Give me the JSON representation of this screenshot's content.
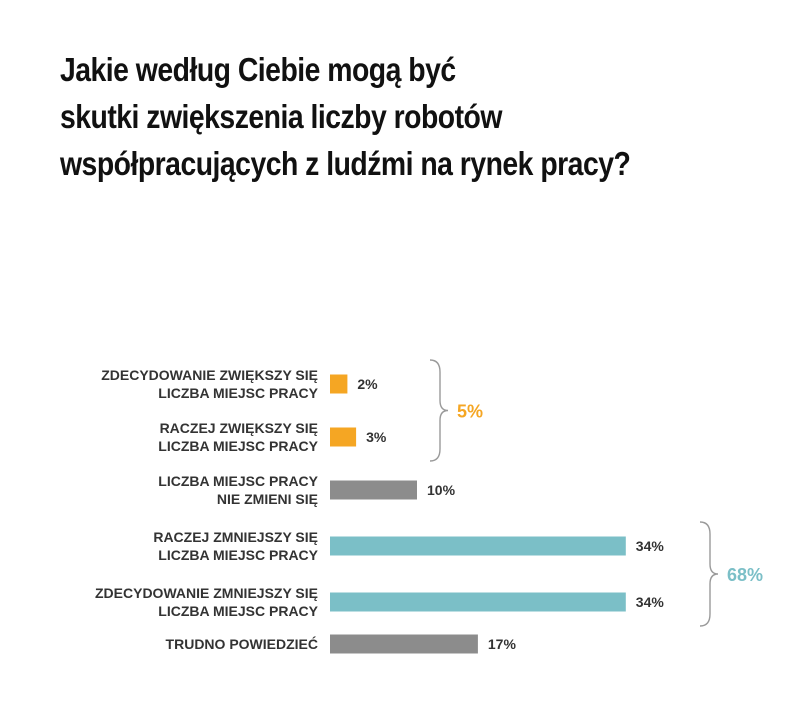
{
  "title_lines": [
    "Jakie według Ciebie mogą być",
    "skutki zwiększenia liczby robotów",
    "współpracujących z ludźmi na rynek pracy?"
  ],
  "chart_data": {
    "type": "bar",
    "orientation": "horizontal",
    "categories": [
      [
        "ZDECYDOWANIE ZWIĘKSZY SIĘ",
        "LICZBA MIEJSC PRACY"
      ],
      [
        "RACZEJ ZWIĘKSZY SIĘ",
        "LICZBA MIEJSC PRACY"
      ],
      [
        "LICZBA MIEJSC PRACY",
        "NIE ZMIENI SIĘ"
      ],
      [
        "RACZEJ ZMNIEJSZY SIĘ",
        "LICZBA MIEJSC PRACY"
      ],
      [
        "ZDECYDOWANIE ZMNIEJSZY SIĘ",
        "LICZBA MIEJSC PRACY"
      ],
      [
        "TRUDNO POWIEDZIEĆ"
      ]
    ],
    "values": [
      2,
      3,
      10,
      34,
      34,
      17
    ],
    "value_labels": [
      "2%",
      "3%",
      "10%",
      "34%",
      "34%",
      "17%"
    ],
    "bar_colors": [
      "#F5A623",
      "#F5A623",
      "#8C8C8C",
      "#7BBFC7",
      "#7BBFC7",
      "#8C8C8C"
    ],
    "groups": [
      {
        "label": "5%",
        "members": [
          0,
          1
        ],
        "color": "#F5A623"
      },
      {
        "label": "68%",
        "members": [
          3,
          4
        ],
        "color": "#7BBFC7"
      }
    ],
    "title": "Jakie według Ciebie mogą być skutki zwiększenia liczby robotów współpracujących z ludźmi na rynek pracy?",
    "xlabel": "",
    "ylabel": "",
    "grid": false,
    "legend": "none"
  }
}
